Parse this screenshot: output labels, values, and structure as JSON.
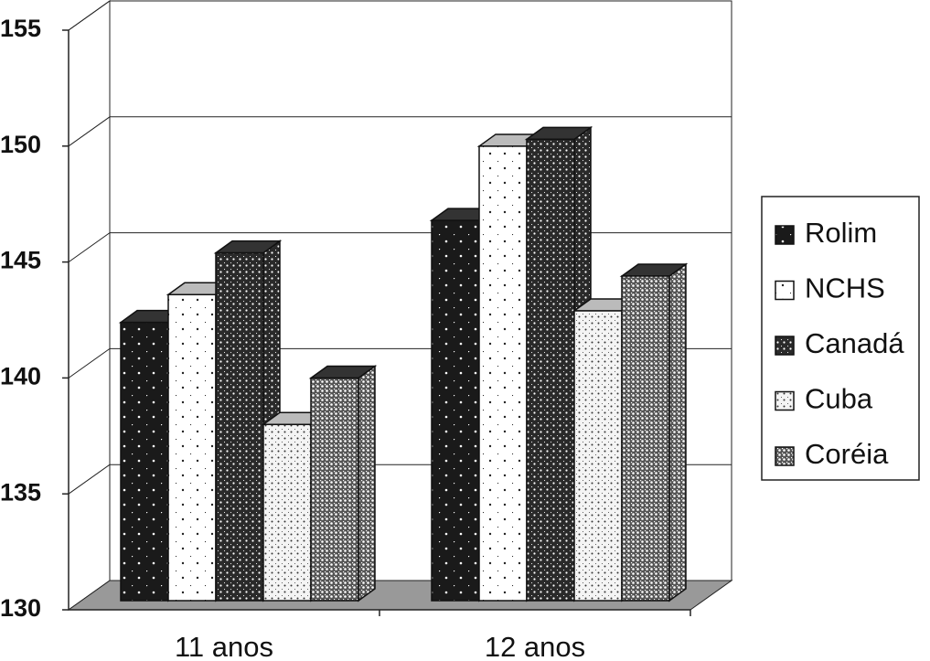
{
  "chart_data": {
    "type": "bar3d",
    "categories": [
      "11 anos",
      "12 anos"
    ],
    "series": [
      {
        "name": "Rolim",
        "color": "#1a1a1a",
        "values": [
          142,
          146.4
        ]
      },
      {
        "name": "NCHS",
        "color": "#ffffff",
        "values": [
          143.2,
          149.6
        ]
      },
      {
        "name": "Canadá",
        "color": "#2a2a2a",
        "values": [
          145,
          149.9
        ]
      },
      {
        "name": "Cuba",
        "color": "#f4f4f4",
        "values": [
          137.6,
          142.5
        ]
      },
      {
        "name": "Coréia",
        "color": "#555555",
        "values": [
          139.6,
          144
        ]
      }
    ],
    "ylim": [
      130,
      155
    ],
    "yticks": [
      130,
      135,
      140,
      145,
      150,
      155
    ],
    "grid": true,
    "legend": "right"
  }
}
